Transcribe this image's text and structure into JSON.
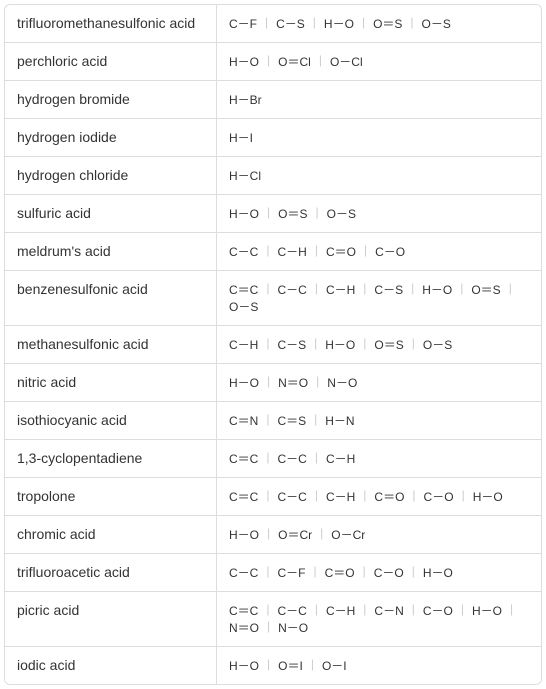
{
  "table": {
    "border_color": "#dddddd",
    "background_color": "#ffffff",
    "name_color": "#333333",
    "bond_color": "#333333",
    "separator_color": "#cccccc",
    "name_fontsize": 14,
    "bond_fontsize": 12,
    "name_column_width": 212,
    "total_width": 538,
    "rows": [
      {
        "name": "trifluoromethanesulfonic acid",
        "bonds": [
          "C－F",
          "C－S",
          "H－O",
          "O＝S",
          "O－S"
        ]
      },
      {
        "name": "perchloric acid",
        "bonds": [
          "H－O",
          "O＝Cl",
          "O－Cl"
        ]
      },
      {
        "name": "hydrogen bromide",
        "bonds": [
          "H－Br"
        ]
      },
      {
        "name": "hydrogen iodide",
        "bonds": [
          "H－I"
        ]
      },
      {
        "name": "hydrogen chloride",
        "bonds": [
          "H－Cl"
        ]
      },
      {
        "name": "sulfuric acid",
        "bonds": [
          "H－O",
          "O＝S",
          "O－S"
        ]
      },
      {
        "name": "meldrum's acid",
        "bonds": [
          "C－C",
          "C－H",
          "C＝O",
          "C－O"
        ]
      },
      {
        "name": "benzenesulfonic acid",
        "bonds": [
          "C＝C",
          "C－C",
          "C－H",
          "C－S",
          "H－O",
          "O＝S",
          "O－S"
        ]
      },
      {
        "name": "methanesulfonic acid",
        "bonds": [
          "C－H",
          "C－S",
          "H－O",
          "O＝S",
          "O－S"
        ]
      },
      {
        "name": "nitric acid",
        "bonds": [
          "H－O",
          "N＝O",
          "N－O"
        ]
      },
      {
        "name": "isothiocyanic acid",
        "bonds": [
          "C＝N",
          "C＝S",
          "H－N"
        ]
      },
      {
        "name": "1,3-cyclopentadiene",
        "bonds": [
          "C＝C",
          "C－C",
          "C－H"
        ]
      },
      {
        "name": "tropolone",
        "bonds": [
          "C＝C",
          "C－C",
          "C－H",
          "C＝O",
          "C－O",
          "H－O"
        ]
      },
      {
        "name": "chromic acid",
        "bonds": [
          "H－O",
          "O＝Cr",
          "O－Cr"
        ]
      },
      {
        "name": "trifluoroacetic acid",
        "bonds": [
          "C－C",
          "C－F",
          "C＝O",
          "C－O",
          "H－O"
        ]
      },
      {
        "name": "picric acid",
        "bonds": [
          "C＝C",
          "C－C",
          "C－H",
          "C－N",
          "C－O",
          "H－O",
          "N＝O",
          "N－O"
        ]
      },
      {
        "name": "iodic acid",
        "bonds": [
          "H－O",
          "O＝I",
          "O－I"
        ]
      }
    ]
  },
  "separator": "|"
}
